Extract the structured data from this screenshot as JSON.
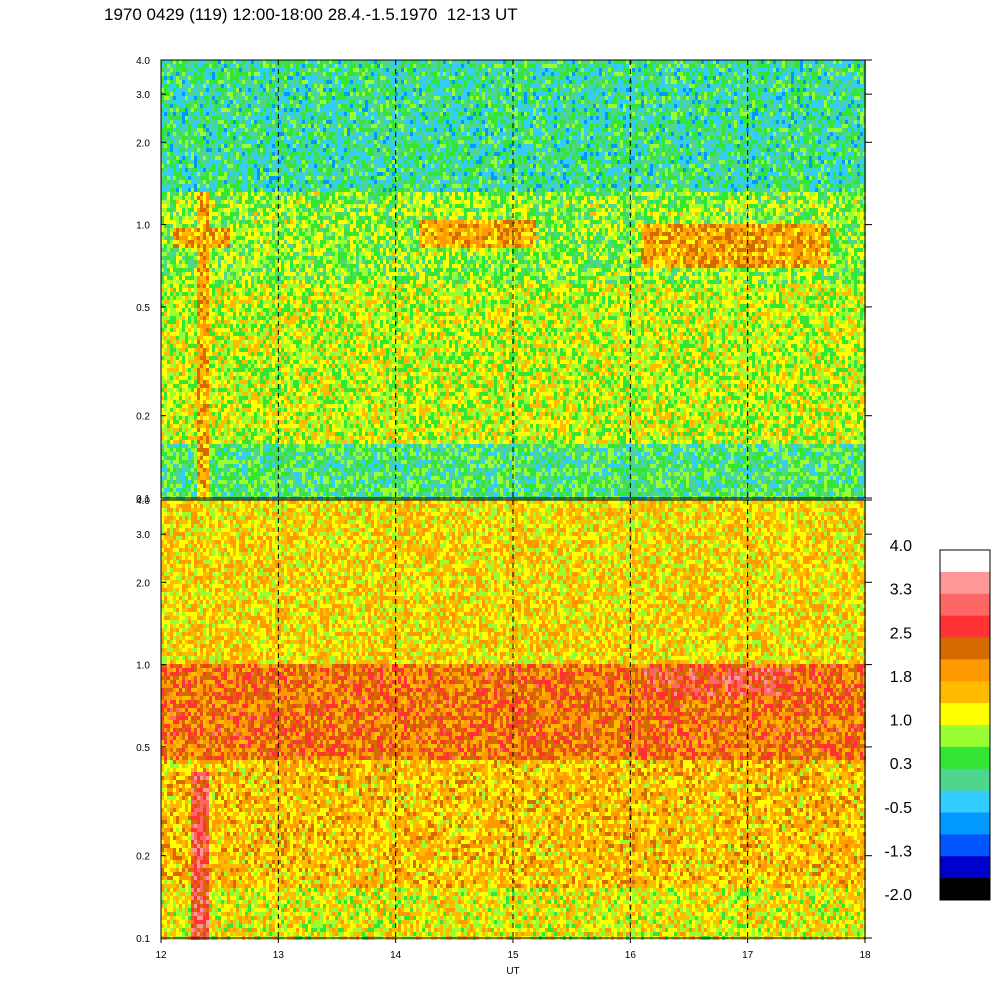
{
  "title": "1970 0429 (119) 12:00-18:00 28.4.-1.5.1970  12-13 UT",
  "chart_data": [
    {
      "type": "heatmap",
      "panel": "upper",
      "xlabel": "",
      "x_range": [
        12,
        18
      ],
      "y_scale": "log",
      "y_range": [
        0.1,
        4.0
      ],
      "y_ticks": [
        "4.0",
        "3.0",
        "2.0",
        "1.0",
        "0.5",
        "0.2",
        "0.1"
      ],
      "y_tick_values": [
        4.0,
        3.0,
        2.0,
        1.0,
        0.5,
        0.2,
        0.1
      ],
      "vertical_gridlines_at": [
        13,
        14,
        15,
        16,
        17
      ],
      "bands": [
        {
          "from_y": 0.1,
          "to_y": 0.16,
          "level": 0.3
        },
        {
          "from_y": 0.16,
          "to_y": 0.6,
          "level": 1.0
        },
        {
          "from_y": 0.6,
          "to_y": 1.3,
          "level": 0.7
        },
        {
          "from_y": 1.3,
          "to_y": 4.0,
          "level": 0.1
        }
      ],
      "features": [
        {
          "x_from": 12.1,
          "x_to": 12.6,
          "y_from": 0.82,
          "y_to": 0.98,
          "level": 1.8
        },
        {
          "x_from": 14.2,
          "x_to": 15.2,
          "y_from": 0.82,
          "y_to": 1.05,
          "level": 1.8
        },
        {
          "x_from": 16.1,
          "x_to": 17.7,
          "y_from": 0.7,
          "y_to": 1.0,
          "level": 1.8
        },
        {
          "x_from": 12.3,
          "x_to": 12.4,
          "y_from": 0.1,
          "y_to": 1.3,
          "level": 1.8
        }
      ]
    },
    {
      "type": "heatmap",
      "panel": "lower",
      "xlabel": "UT",
      "x_range": [
        12,
        18
      ],
      "x_ticks": [
        "12",
        "13",
        "14",
        "15",
        "16",
        "17",
        "18"
      ],
      "y_scale": "log",
      "y_range": [
        0.1,
        4.0
      ],
      "y_ticks": [
        "4.0",
        "3.0",
        "2.0",
        "1.0",
        "0.5",
        "0.2",
        "0.1"
      ],
      "y_tick_values": [
        4.0,
        3.0,
        2.0,
        1.0,
        0.5,
        0.2,
        0.1
      ],
      "vertical_gridlines_at": [
        13,
        14,
        15,
        16,
        17
      ],
      "bands": [
        {
          "from_y": 0.1,
          "to_y": 0.15,
          "level": 1.2
        },
        {
          "from_y": 0.15,
          "to_y": 0.45,
          "level": 1.6
        },
        {
          "from_y": 0.45,
          "to_y": 1.0,
          "level": 2.2
        },
        {
          "from_y": 1.0,
          "to_y": 4.0,
          "level": 1.4
        }
      ],
      "features": [
        {
          "x_from": 16.1,
          "x_to": 17.4,
          "y_from": 0.78,
          "y_to": 0.98,
          "level": 2.7
        },
        {
          "x_from": 12.25,
          "x_to": 12.4,
          "y_from": 0.1,
          "y_to": 0.4,
          "level": 2.8
        }
      ]
    }
  ],
  "colorbar": {
    "labels": [
      "4.0",
      "3.3",
      "2.5",
      "1.8",
      "1.0",
      "0.3",
      "-0.5",
      "-1.3",
      "-2.0"
    ],
    "label_values": [
      4.0,
      3.3,
      2.5,
      1.8,
      1.0,
      0.3,
      -0.5,
      -1.3,
      -2.0
    ],
    "range": [
      -2.0,
      4.0
    ],
    "colors_top_to_bottom": [
      "#ffffff",
      "#ff9999",
      "#ff6666",
      "#ff3333",
      "#d46a00",
      "#ff9900",
      "#ffbb00",
      "#ffff00",
      "#99ff33",
      "#33e633",
      "#4dd68c",
      "#33ccff",
      "#0099ff",
      "#0055ff",
      "#0000cc",
      "#000000"
    ]
  }
}
